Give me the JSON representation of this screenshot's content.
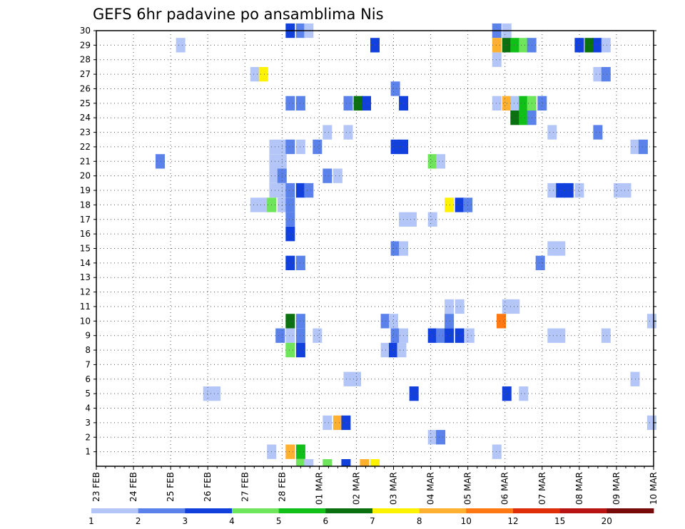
{
  "chart_data": {
    "type": "heatmap",
    "title": "GEFS 6hr padavine po ansamblima Nis",
    "x_tick_labels": [
      "23 FEB",
      "24 FEB",
      "25 FEB",
      "26 FEB",
      "27 FEB",
      "28 FEB",
      "01 MAR",
      "02 MAR",
      "03 MAR",
      "04 MAR",
      "05 MAR",
      "06 MAR",
      "07 MAR",
      "08 MAR",
      "09 MAR",
      "10 MAR"
    ],
    "x_range": [
      "23 FEB",
      "10 MAR"
    ],
    "y_tick_labels": [
      "1",
      "2",
      "3",
      "4",
      "5",
      "6",
      "7",
      "8",
      "9",
      "10",
      "11",
      "12",
      "13",
      "14",
      "15",
      "16",
      "17",
      "18",
      "19",
      "20",
      "21",
      "22",
      "23",
      "24",
      "25",
      "26",
      "27",
      "28",
      "29",
      "30"
    ],
    "y_range": [
      0,
      30
    ],
    "grid": true,
    "colorbar": {
      "labels": [
        "1",
        "2",
        "3",
        "4",
        "5",
        "6",
        "7",
        "8",
        "10",
        "12",
        "15",
        "20"
      ],
      "colors": [
        "#b4c6f7",
        "#5a82ea",
        "#1240dd",
        "#6ee55a",
        "#10c018",
        "#0a7010",
        "#fff200",
        "#ffb030",
        "#ff7812",
        "#e02d0a",
        "#b81414",
        "#780a0a"
      ]
    },
    "cells": [
      [
        5.22,
        30,
        3
      ],
      [
        5.5,
        30,
        2
      ],
      [
        5.72,
        30,
        1
      ],
      [
        10.78,
        30,
        2
      ],
      [
        11.05,
        30,
        1
      ],
      [
        2.27,
        29,
        1
      ],
      [
        7.5,
        29,
        3
      ],
      [
        10.78,
        29,
        8
      ],
      [
        11.05,
        29,
        6
      ],
      [
        11.27,
        29,
        5
      ],
      [
        11.5,
        29,
        4
      ],
      [
        11.72,
        29,
        2
      ],
      [
        13.0,
        29,
        3
      ],
      [
        13.27,
        29,
        6
      ],
      [
        13.5,
        29,
        3
      ],
      [
        13.72,
        29,
        1
      ],
      [
        10.78,
        28,
        1
      ],
      [
        4.27,
        27,
        1
      ],
      [
        4.5,
        27,
        7
      ],
      [
        13.5,
        27,
        1
      ],
      [
        13.72,
        27,
        2
      ],
      [
        8.05,
        26,
        2
      ],
      [
        5.22,
        25,
        2
      ],
      [
        5.5,
        25,
        2
      ],
      [
        6.78,
        25,
        2
      ],
      [
        7.05,
        25,
        6
      ],
      [
        7.27,
        25,
        3
      ],
      [
        8.27,
        25,
        3
      ],
      [
        10.78,
        25,
        1
      ],
      [
        11.05,
        25,
        8
      ],
      [
        11.27,
        25,
        1
      ],
      [
        11.5,
        25,
        5
      ],
      [
        11.72,
        25,
        4
      ],
      [
        12.0,
        25,
        2
      ],
      [
        11.27,
        24,
        6
      ],
      [
        11.5,
        24,
        5
      ],
      [
        11.72,
        24,
        2
      ],
      [
        6.22,
        23,
        1
      ],
      [
        6.78,
        23,
        1
      ],
      [
        12.27,
        23,
        1
      ],
      [
        13.5,
        23,
        2
      ],
      [
        4.78,
        22,
        1
      ],
      [
        5.0,
        22,
        1
      ],
      [
        5.22,
        22,
        2
      ],
      [
        5.5,
        22,
        1
      ],
      [
        5.95,
        22,
        2
      ],
      [
        8.05,
        22,
        3
      ],
      [
        8.27,
        22,
        3
      ],
      [
        14.5,
        22,
        1
      ],
      [
        14.72,
        22,
        2
      ],
      [
        1.72,
        21,
        2
      ],
      [
        4.78,
        21,
        1
      ],
      [
        5.0,
        21,
        1
      ],
      [
        9.05,
        21,
        4
      ],
      [
        9.27,
        21,
        1
      ],
      [
        4.78,
        20,
        1
      ],
      [
        5.0,
        20,
        2
      ],
      [
        6.22,
        20,
        2
      ],
      [
        6.5,
        20,
        1
      ],
      [
        4.78,
        19,
        1
      ],
      [
        5.0,
        19,
        1
      ],
      [
        5.22,
        19,
        2
      ],
      [
        5.5,
        19,
        3
      ],
      [
        5.72,
        19,
        2
      ],
      [
        12.27,
        19,
        1
      ],
      [
        12.5,
        19,
        3
      ],
      [
        12.72,
        19,
        3
      ],
      [
        13.0,
        19,
        1
      ],
      [
        14.05,
        19,
        1
      ],
      [
        14.27,
        19,
        1
      ],
      [
        4.27,
        18,
        1
      ],
      [
        4.5,
        18,
        1
      ],
      [
        4.72,
        18,
        4
      ],
      [
        5.0,
        18,
        1
      ],
      [
        5.22,
        18,
        2
      ],
      [
        9.5,
        18,
        7
      ],
      [
        9.78,
        18,
        3
      ],
      [
        10.0,
        18,
        2
      ],
      [
        5.22,
        17,
        2
      ],
      [
        8.27,
        17,
        1
      ],
      [
        8.5,
        17,
        1
      ],
      [
        9.05,
        17,
        1
      ],
      [
        5.22,
        16,
        3
      ],
      [
        8.05,
        15,
        2
      ],
      [
        8.27,
        15,
        1
      ],
      [
        12.27,
        15,
        1
      ],
      [
        12.5,
        15,
        1
      ],
      [
        5.22,
        14,
        3
      ],
      [
        5.5,
        14,
        2
      ],
      [
        11.95,
        14,
        2
      ],
      [
        9.5,
        11,
        1
      ],
      [
        9.78,
        11,
        1
      ],
      [
        11.05,
        11,
        1
      ],
      [
        11.27,
        11,
        1
      ],
      [
        5.22,
        10,
        6
      ],
      [
        5.5,
        10,
        2
      ],
      [
        7.78,
        10,
        2
      ],
      [
        8.0,
        10,
        1
      ],
      [
        9.5,
        10,
        2
      ],
      [
        10.9,
        10,
        9
      ],
      [
        14.95,
        10,
        1
      ],
      [
        4.95,
        9,
        2
      ],
      [
        5.22,
        9,
        1
      ],
      [
        5.5,
        9,
        2
      ],
      [
        5.95,
        9,
        1
      ],
      [
        8.05,
        9,
        2
      ],
      [
        8.27,
        9,
        1
      ],
      [
        9.05,
        9,
        3
      ],
      [
        9.27,
        9,
        2
      ],
      [
        9.5,
        9,
        3
      ],
      [
        9.78,
        9,
        3
      ],
      [
        10.05,
        9,
        1
      ],
      [
        12.27,
        9,
        1
      ],
      [
        12.5,
        9,
        1
      ],
      [
        13.72,
        9,
        1
      ],
      [
        5.22,
        8,
        4
      ],
      [
        5.5,
        8,
        3
      ],
      [
        7.78,
        8,
        1
      ],
      [
        8.0,
        8,
        3
      ],
      [
        8.22,
        8,
        1
      ],
      [
        6.78,
        6,
        1
      ],
      [
        7.0,
        6,
        1
      ],
      [
        14.5,
        6,
        1
      ],
      [
        3.0,
        5,
        1
      ],
      [
        3.22,
        5,
        1
      ],
      [
        8.55,
        5,
        3
      ],
      [
        11.05,
        5,
        3
      ],
      [
        11.5,
        5,
        1
      ],
      [
        6.22,
        3,
        1
      ],
      [
        6.5,
        3,
        8
      ],
      [
        6.72,
        3,
        3
      ],
      [
        14.95,
        3,
        1
      ],
      [
        9.05,
        2,
        1
      ],
      [
        9.27,
        2,
        2
      ],
      [
        4.72,
        1,
        1
      ],
      [
        5.22,
        1,
        8
      ],
      [
        5.5,
        1,
        5
      ],
      [
        10.78,
        1,
        1
      ],
      [
        5.5,
        0,
        4
      ],
      [
        5.72,
        0,
        1
      ],
      [
        6.22,
        0,
        4
      ],
      [
        6.72,
        0,
        3
      ],
      [
        7.22,
        0,
        8
      ],
      [
        7.5,
        0,
        7
      ]
    ]
  }
}
